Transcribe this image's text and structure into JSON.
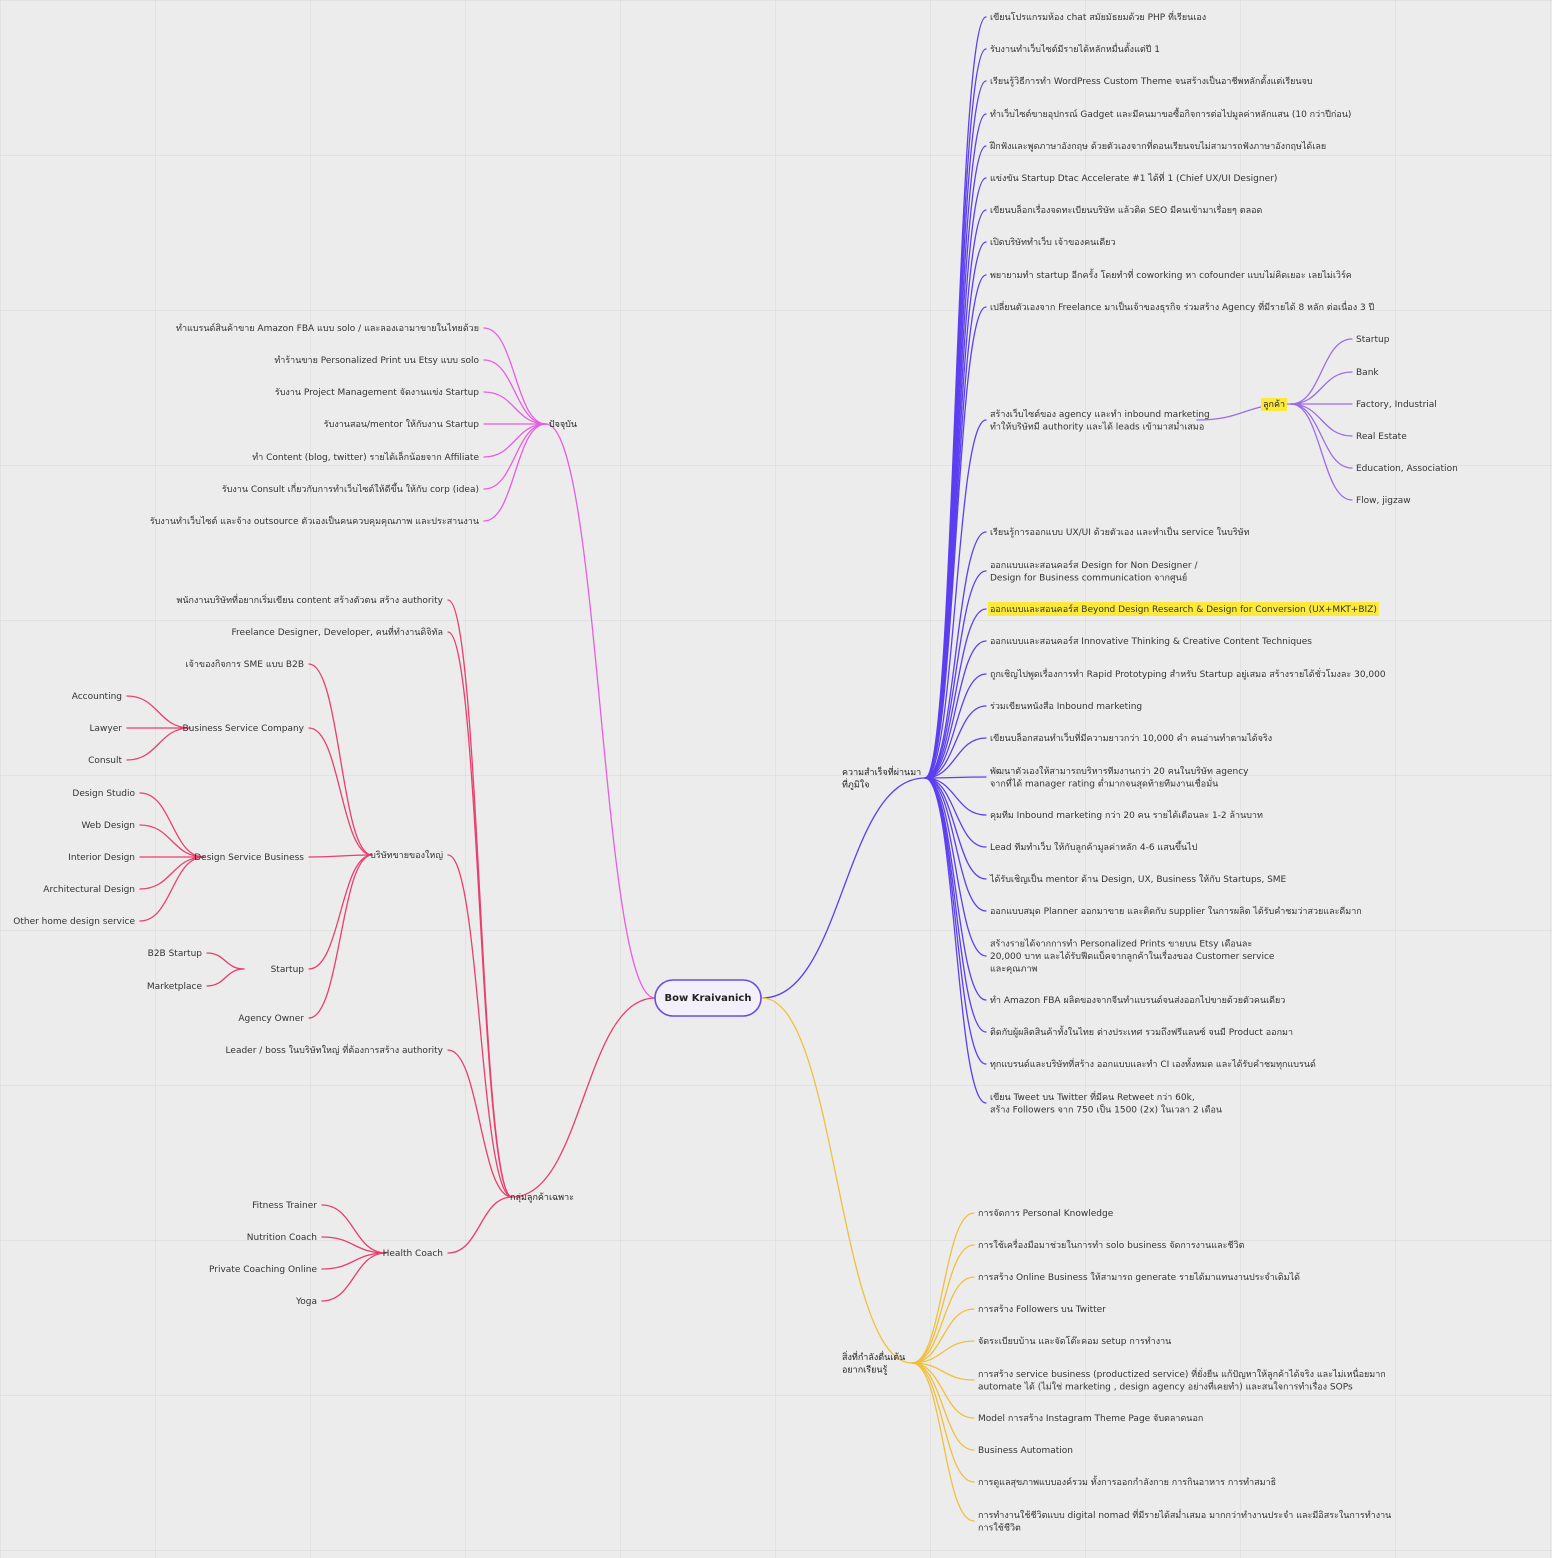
{
  "colors": {
    "background": "#ececec",
    "root": "#6a4de0",
    "achievements": "#5b3ff0",
    "customers": "#9b6ce6",
    "current": "#e95de0",
    "niche": "#ea3e6b",
    "learning": "#f0bf3e",
    "highlight": "#fde93a"
  },
  "root": {
    "text": [
      "Bow Kraivanich"
    ]
  },
  "nodes": {
    "achievements": {
      "text": [
        "ความสำเร็จที่ผ่านมา",
        "ที่ภูมิใจ"
      ],
      "children": [
        {
          "text": [
            "เขียนโปรแกรมห้อง chat สมัยมัธยมด้วย PHP ที่เรียนเอง"
          ]
        },
        {
          "text": [
            "รับงานทำเว็บไซต์มีรายได้หลักหมื่นตั้งแต่ปี 1"
          ]
        },
        {
          "text": [
            "เรียนรู้วิธีการทำ WordPress Custom Theme จนสร้างเป็นอาชีพหลักตั้งแต่เรียนจบ"
          ]
        },
        {
          "text": [
            "ทำเว็บไซต์ขายอุปกรณ์ Gadget และมีคนมาขอซื้อกิจการต่อไปมูลค่าหลักแสน (10 กว่าปีก่อน)"
          ]
        },
        {
          "text": [
            "ฝึกฟังและพูดภาษาอังกฤษ ด้วยตัวเองจากที่ตอนเรียนจบไม่สามารถฟังภาษาอังกฤษได้เลย"
          ]
        },
        {
          "text": [
            "แข่งขัน Startup Dtac Accelerate #1 ได้ที่ 1 (Chief UX/UI Designer)"
          ]
        },
        {
          "text": [
            "เขียนบล็อกเรื่องจดทะเบียนบริษัท แล้วติด SEO มีคนเข้ามาเรื่อยๆ ตลอด"
          ]
        },
        {
          "text": [
            "เปิดบริษัททำเว็บ เจ้าของคนเดียว"
          ]
        },
        {
          "text": [
            "พยายามทำ startup อีกครั้ง โดยทำที่ coworking หา cofounder แบบไม่คิดเยอะ เลยไม่เวิร์ค"
          ]
        },
        {
          "text": [
            "เปลี่ยนตัวเองจาก Freelance มาเป็นเจ้าของธุรกิจ ร่วมสร้าง Agency ที่มีรายได้ 8 หลัก ต่อเนื่อง 3 ปี"
          ]
        },
        {
          "text": [
            "สร้างเว็บไซต์ของ agency และทำ inbound marketing",
            "ทำให้บริษัทมี authority และได้ leads เข้ามาสม่ำเสมอ"
          ]
        },
        {
          "text": [
            "เรียนรู้การออกแบบ UX/UI ด้วยตัวเอง และทำเป็น service ในบริษัท"
          ]
        },
        {
          "text": [
            "ออกแบบและสอนคอร์ส Design for Non Designer /",
            "Design for Business communication จากศูนย์"
          ]
        },
        {
          "text": [
            "ออกแบบและสอนคอร์ส Beyond Design Research & Design for Conversion (UX+MKT+BIZ)"
          ],
          "highlight": true
        },
        {
          "text": [
            "ออกแบบและสอนคอร์ส  Innovative Thinking & Creative Content Techniques"
          ]
        },
        {
          "text": [
            "ถูกเชิญไปพูดเรื่องการทำ Rapid Prototyping สำหรับ Startup อยู่เสมอ สร้างรายได้ชั่วโมงละ 30,000"
          ]
        },
        {
          "text": [
            "ร่วมเขียนหนังสือ Inbound marketing"
          ]
        },
        {
          "text": [
            "เขียนบล็อกสอนทำเว็บที่มีความยาวกว่า 10,000 คำ คนอ่านทำตามได้จริง"
          ]
        },
        {
          "text": [
            "พัฒนาตัวเองให้สามารถบริหารทีมงานกว่า 20 คนในบริษัท agency",
            "จากที่ได้ manager rating ต่ำมากจนสุดท้ายทีมงานเชื่อมั่น"
          ]
        },
        {
          "text": [
            "คุมทีม Inbound marketing กว่า 20 คน รายได้เดือนละ 1-2 ล้านบาท"
          ]
        },
        {
          "text": [
            "Lead ทีมทำเว็บ ให้กับลูกค้ามูลค่าหลัก 4-6 แสนขึ้นไป"
          ]
        },
        {
          "text": [
            "ได้รับเชิญเป็น mentor ด้าน Design, UX, Business ให้กับ Startups, SME"
          ]
        },
        {
          "text": [
            "ออกแบบสมุด Planner ออกมาขาย และติดกับ supplier ในการผลิต ได้รับคำชมว่าสวยและดีมาก"
          ]
        },
        {
          "text": [
            "สร้างรายได้จากการทำ Personalized Prints ขายบน Etsy เดือนละ",
            "20,000 บาท และได้รับฟีดแบ็คจากลูกค้าในเรื่องของ Customer service",
            "และคุณภาพ"
          ]
        },
        {
          "text": [
            "ทำ Amazon FBA ผลิตของจากจีนทำแบรนด์จนส่งออกไปขายด้วยตัวคนเดียว"
          ]
        },
        {
          "text": [
            "ติดกับผู้ผลิตสินค้าทั้งในไทย ต่างประเทศ รวมถึงฟรีแลนซ์ จนมี Product ออกมา"
          ]
        },
        {
          "text": [
            "ทุกแบรนด์และบริษัทที่สร้าง ออกแบบและทำ CI เองทั้งหมด และได้รับคำชมทุกแบรนด์"
          ]
        },
        {
          "text": [
            "เขียน Tweet บน Twitter ที่มีคน Retweet กว่า 60k,",
            "สร้าง Followers จาก 750 เป็น 1500 (2x) ในเวลา 2 เดือน"
          ]
        }
      ]
    },
    "customers": {
      "text": [
        "ลูกค้า"
      ],
      "highlight": true,
      "children": [
        {
          "text": [
            "Startup"
          ]
        },
        {
          "text": [
            "Bank"
          ]
        },
        {
          "text": [
            "Factory, Industrial"
          ]
        },
        {
          "text": [
            "Real Estate"
          ]
        },
        {
          "text": [
            "Education, Association"
          ]
        },
        {
          "text": [
            "Flow, jigzaw"
          ]
        }
      ]
    },
    "learning": {
      "text": [
        "สิ่งที่กำลังตื่นเต้น",
        "อยากเรียนรู้"
      ],
      "children": [
        {
          "text": [
            "การจัดการ Personal Knowledge"
          ]
        },
        {
          "text": [
            "การใช้เครื่องมือมาช่วยในการทำ solo business จัดการงานและชีวิต"
          ]
        },
        {
          "text": [
            "การสร้าง Online Business ให้สามารถ generate รายได้มาแทนงานประจำเดิมได้"
          ]
        },
        {
          "text": [
            "การสร้าง Followers บน Twitter"
          ]
        },
        {
          "text": [
            "จัดระเบียบบ้าน และจัดโต๊ะคอม setup การทำงาน"
          ]
        },
        {
          "text": [
            "การสร้าง service business (productized service) ที่ยั่งยืน แก้ปัญหาให้ลูกค้าได้จริง และไม่เหนื่อยมาก",
            "automate ได้ (ไม่ใช่ marketing , design agency อย่างที่เคยทำ) และสนใจการทำเรื่อง SOPs"
          ]
        },
        {
          "text": [
            "Model การสร้าง Instagram Theme Page จับตลาดนอก"
          ]
        },
        {
          "text": [
            "Business Automation"
          ]
        },
        {
          "text": [
            "การดูแลสุขภาพแบบองค์รวม ทั้งการออกกำลังกาย การกินอาหาร การทำสมาธิ"
          ]
        },
        {
          "text": [
            "การทำงานใช้ชีวิตแบบ digital nomad ที่มีรายได้สม่ำเสมอ มากกว่าทำงานประจำ และมีอิสระในการทำงาน",
            "การใช้ชีวิต"
          ]
        }
      ]
    },
    "current": {
      "text": [
        "ปัจจุบัน"
      ],
      "children": [
        {
          "text": [
            "ทำแบรนด์สินค้าขาย Amazon FBA แบบ solo / และลองเอามาขายในไทยด้วย"
          ]
        },
        {
          "text": [
            "ทำร้านขาย Personalized Print บน Etsy แบบ solo"
          ]
        },
        {
          "text": [
            "รับงาน Project Management จัดงานแข่ง Startup"
          ]
        },
        {
          "text": [
            "รับงานสอน/mentor ให้กับงาน Startup"
          ]
        },
        {
          "text": [
            "ทำ Content (blog, twitter) รายได้เล็กน้อยจาก Affiliate"
          ]
        },
        {
          "text": [
            "รับงาน Consult เกี่ยวกับการทำเว็บไซต์ให้ดีขึ้น ให้กับ corp (idea)"
          ]
        },
        {
          "text": [
            "รับงานทำเว็บไซต์ และจ้าง outsource ตัวเองเป็นคนควบคุมคุณภาพ และประสานงาน"
          ]
        }
      ]
    },
    "niche": {
      "text": [
        "กลุ่มลูกค้าเฉพาะ"
      ],
      "children": [
        {
          "text": [
            "พนักงานบริษัทที่อยากเริ่มเขียน content สร้างตัวตน สร้าง authority"
          ]
        },
        {
          "text": [
            "Freelance Designer, Developer, คนที่ทำงานดิจิทัล"
          ]
        },
        {
          "text": [
            "บริษัทขายของใหญ่"
          ]
        },
        {
          "text": [
            "Leader / boss ในบริษัทใหญ่ ที่ต้องการสร้าง authority"
          ]
        },
        {
          "text": [
            "Health Coach"
          ]
        }
      ]
    },
    "bigco": {
      "children": [
        {
          "text": [
            "เจ้าของกิจการ SME แบบ B2B"
          ]
        },
        {
          "text": [
            "Business  Service Company"
          ]
        },
        {
          "text": [
            "Design Service Business"
          ]
        },
        {
          "text": [
            "Startup"
          ]
        },
        {
          "text": [
            "Agency Owner"
          ]
        }
      ]
    },
    "bizservice": {
      "children": [
        {
          "text": [
            "Accounting"
          ]
        },
        {
          "text": [
            "Lawyer"
          ]
        },
        {
          "text": [
            "Consult"
          ]
        }
      ]
    },
    "designbiz": {
      "children": [
        {
          "text": [
            "Design Studio"
          ]
        },
        {
          "text": [
            "Web Design"
          ]
        },
        {
          "text": [
            "Interior Design"
          ]
        },
        {
          "text": [
            "Architectural Design"
          ]
        },
        {
          "text": [
            "Other home design service"
          ]
        }
      ]
    },
    "startup": {
      "children": [
        {
          "text": [
            "B2B  Startup"
          ]
        },
        {
          "text": [
            "Marketplace"
          ]
        }
      ]
    },
    "health": {
      "children": [
        {
          "text": [
            "Fitness Trainer"
          ]
        },
        {
          "text": [
            "Nutrition Coach"
          ]
        },
        {
          "text": [
            "Private Coaching Online"
          ]
        },
        {
          "text": [
            "Yoga"
          ]
        }
      ]
    }
  }
}
